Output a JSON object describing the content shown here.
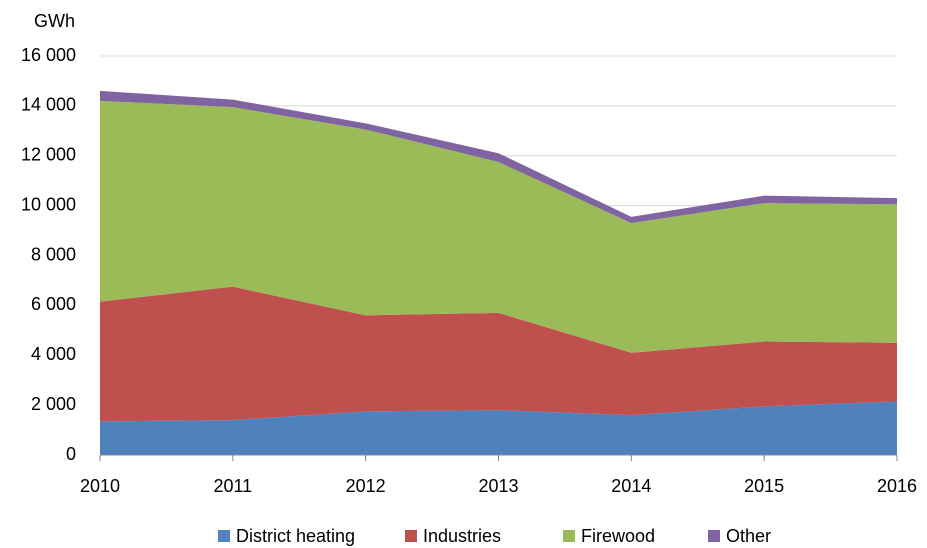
{
  "chart_data": {
    "type": "area",
    "stacked": true,
    "y_axis_label": "GWh",
    "x": [
      2010,
      2011,
      2012,
      2013,
      2014,
      2015,
      2016
    ],
    "xlim": [
      2010,
      2016
    ],
    "xticks": [
      2010,
      2011,
      2012,
      2013,
      2014,
      2015,
      2016
    ],
    "ylim": [
      0,
      16000
    ],
    "yticks": [
      0,
      {
        "value": 2000,
        "label": "2 000"
      },
      {
        "value": 4000,
        "label": "4 000"
      },
      {
        "value": 6000,
        "label": "6 000"
      },
      {
        "value": 8000,
        "label": "8 000"
      },
      {
        "value": 10000,
        "label": "10 000"
      },
      {
        "value": 12000,
        "label": "12 000"
      },
      {
        "value": 14000,
        "label": "14 000"
      },
      {
        "value": 16000,
        "label": "16 000"
      }
    ],
    "grid": true,
    "legend": "bottom",
    "series": [
      {
        "name": "District heating",
        "color": "#4f81bd",
        "values": [
          1350,
          1400,
          1750,
          1800,
          1600,
          1950,
          2150
        ]
      },
      {
        "name": "Industries",
        "color": "#c0504d",
        "values": [
          4800,
          5350,
          3850,
          3900,
          2500,
          2600,
          2350
        ]
      },
      {
        "name": "Firewood",
        "color": "#9bbb59",
        "values": [
          8050,
          7200,
          7450,
          6050,
          5200,
          5550,
          5550
        ]
      },
      {
        "name": "Other",
        "color": "#8064a2",
        "values": [
          400,
          300,
          250,
          350,
          250,
          300,
          250
        ]
      }
    ]
  }
}
